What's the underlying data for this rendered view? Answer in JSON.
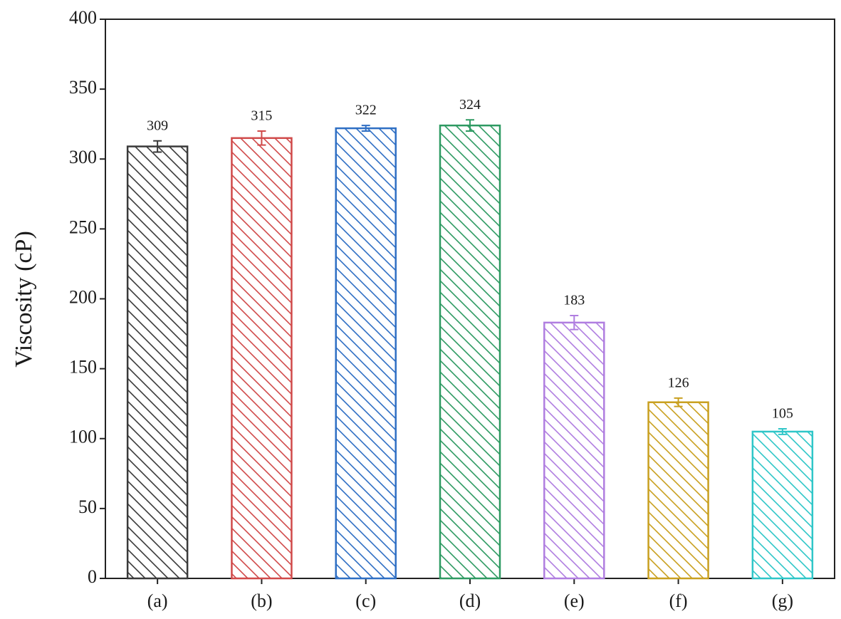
{
  "chart_data": {
    "type": "bar",
    "y_label": "Viscosity (cP)",
    "categories": [
      "(a)",
      "(b)",
      "(c)",
      "(d)",
      "(e)",
      "(f)",
      "(g)"
    ],
    "values": [
      309,
      315,
      322,
      324,
      183,
      126,
      105
    ],
    "errors": [
      4,
      5,
      2,
      4,
      5,
      3,
      2
    ],
    "colors": [
      "#3a3a3a",
      "#d04a4a",
      "#2f6fc4",
      "#2e9a62",
      "#b07ee0",
      "#c9a020",
      "#2fc6c8"
    ],
    "ylim": [
      0,
      400
    ],
    "yticks": [
      0,
      50,
      100,
      150,
      200,
      250,
      300,
      350,
      400
    ],
    "grid": false
  }
}
